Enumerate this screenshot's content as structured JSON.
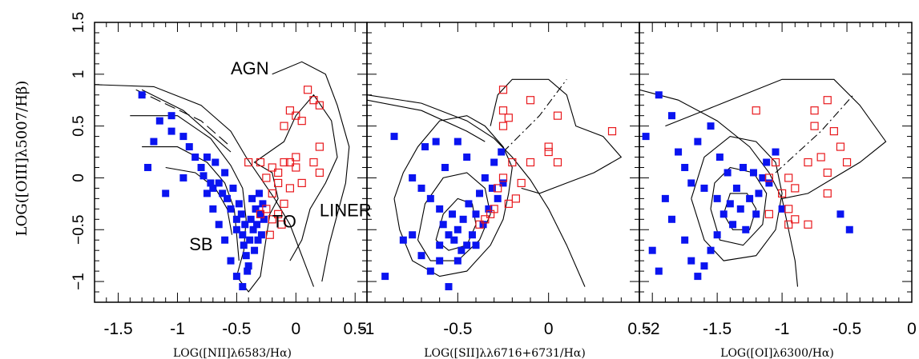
{
  "chart_data": {
    "type": "scatter",
    "ylabel": "LOG([OIII]λ5007/Hβ)",
    "ylim": [
      -1.2,
      1.5
    ],
    "y_ticks": [
      "1.5",
      "1",
      "0.5",
      "0",
      "−0.5",
      "−1"
    ],
    "y_tick_values": [
      1.5,
      1,
      0.5,
      0,
      -0.5,
      -1
    ],
    "colors": {
      "blue": "#0a14f0",
      "red": "#e8181c",
      "line": "#000000"
    },
    "panels": [
      {
        "xlabel": "LOG([NII]λ6583/Hα)",
        "xlim": [
          -1.7,
          0.6
        ],
        "x_ticks": [
          "-1.5",
          "-1",
          "-0.5",
          "0",
          "0.5"
        ],
        "x_tick_values": [
          -1.5,
          -1,
          -0.5,
          0,
          0.5
        ],
        "annotations": [
          {
            "text": "AGN",
            "x": -0.55,
            "y": 1.0
          },
          {
            "text": "SB",
            "x": -0.9,
            "y": -0.7
          },
          {
            "text": "TO",
            "x": -0.2,
            "y": -0.48
          },
          {
            "text": "LINER",
            "x": 0.2,
            "y": -0.37
          }
        ],
        "blue": [
          [
            -1.3,
            0.8
          ],
          [
            -1.15,
            0.55
          ],
          [
            -1.05,
            0.45
          ],
          [
            -0.95,
            0.4
          ],
          [
            -0.9,
            0.3
          ],
          [
            -0.85,
            0.2
          ],
          [
            -0.8,
            0.1
          ],
          [
            -0.78,
            0.02
          ],
          [
            -0.75,
            0.2
          ],
          [
            -0.72,
            -0.05
          ],
          [
            -0.7,
            -0.1
          ],
          [
            -0.68,
            0.15
          ],
          [
            -0.65,
            -0.05
          ],
          [
            -0.62,
            -0.15
          ],
          [
            -0.6,
            0.05
          ],
          [
            -0.58,
            -0.2
          ],
          [
            -0.55,
            -0.3
          ],
          [
            -0.53,
            -0.1
          ],
          [
            -0.5,
            -0.4
          ],
          [
            -0.5,
            -0.5
          ],
          [
            -0.48,
            -0.25
          ],
          [
            -0.46,
            -0.35
          ],
          [
            -0.45,
            -0.55
          ],
          [
            -0.44,
            -0.65
          ],
          [
            -0.43,
            -0.45
          ],
          [
            -0.42,
            -0.75
          ],
          [
            -0.41,
            -0.9
          ],
          [
            -0.4,
            -0.85
          ],
          [
            -0.39,
            -0.6
          ],
          [
            -0.38,
            -0.4
          ],
          [
            -0.37,
            -0.2
          ],
          [
            -0.36,
            -0.5
          ],
          [
            -0.35,
            -0.7
          ],
          [
            -0.34,
            -0.3
          ],
          [
            -0.33,
            -0.45
          ],
          [
            -0.32,
            -0.6
          ],
          [
            -0.31,
            -0.15
          ],
          [
            -0.3,
            -0.35
          ],
          [
            -0.29,
            -0.55
          ],
          [
            -0.28,
            -0.25
          ],
          [
            -0.27,
            -0.4
          ],
          [
            -0.45,
            -1.05
          ],
          [
            -0.5,
            -0.95
          ],
          [
            -0.55,
            -0.8
          ],
          [
            -0.6,
            -0.6
          ],
          [
            -0.65,
            -0.45
          ],
          [
            -0.7,
            -0.3
          ],
          [
            -0.75,
            -0.15
          ],
          [
            -1.2,
            0.35
          ],
          [
            -1.25,
            0.1
          ],
          [
            -1.1,
            -0.15
          ],
          [
            -1.05,
            0.6
          ],
          [
            -0.95,
            0.0
          ]
        ],
        "red": [
          [
            0.1,
            0.85
          ],
          [
            0.15,
            0.75
          ],
          [
            0.2,
            0.7
          ],
          [
            0.05,
            0.55
          ],
          [
            -0.05,
            0.65
          ],
          [
            0.0,
            0.6
          ],
          [
            -0.1,
            0.5
          ],
          [
            0.2,
            0.3
          ],
          [
            0.15,
            0.15
          ],
          [
            0.2,
            0.05
          ],
          [
            0.0,
            0.2
          ],
          [
            0.0,
            0.1
          ],
          [
            -0.05,
            0.15
          ],
          [
            -0.1,
            0.15
          ],
          [
            -0.15,
            0.05
          ],
          [
            -0.2,
            0.1
          ],
          [
            -0.3,
            0.15
          ],
          [
            -0.4,
            0.15
          ],
          [
            -0.25,
            0.0
          ],
          [
            -0.15,
            -0.05
          ],
          [
            -0.2,
            -0.15
          ],
          [
            -0.25,
            -0.3
          ],
          [
            -0.3,
            -0.35
          ],
          [
            -0.2,
            -0.4
          ],
          [
            -0.15,
            -0.35
          ],
          [
            -0.12,
            -0.45
          ],
          [
            -0.22,
            -0.55
          ],
          [
            -0.1,
            -0.25
          ],
          [
            -0.05,
            -0.1
          ],
          [
            0.05,
            -0.05
          ]
        ]
      },
      {
        "xlabel": "LOG([SII]λλ6716+6731/Hα)",
        "xlim": [
          -1.0,
          0.5
        ],
        "x_ticks": [
          "-1",
          "-0.5",
          "0",
          "0.5"
        ],
        "x_tick_values": [
          -1,
          -0.5,
          0,
          0.5
        ],
        "annotations": [],
        "blue": [
          [
            -0.85,
            0.4
          ],
          [
            -0.75,
            0.0
          ],
          [
            -0.7,
            -0.1
          ],
          [
            -0.68,
            0.3
          ],
          [
            -0.65,
            -0.2
          ],
          [
            -0.62,
            0.35
          ],
          [
            -0.6,
            -0.3
          ],
          [
            -0.58,
            -0.45
          ],
          [
            -0.57,
            0.1
          ],
          [
            -0.55,
            -0.55
          ],
          [
            -0.53,
            -0.35
          ],
          [
            -0.52,
            -0.6
          ],
          [
            -0.5,
            -0.5
          ],
          [
            -0.48,
            -0.7
          ],
          [
            -0.47,
            -0.4
          ],
          [
            -0.45,
            -0.65
          ],
          [
            -0.44,
            -0.25
          ],
          [
            -0.42,
            -0.55
          ],
          [
            -0.4,
            -0.35
          ],
          [
            -0.38,
            -0.15
          ],
          [
            -0.36,
            -0.45
          ],
          [
            -0.35,
            0.0
          ],
          [
            -0.33,
            -0.3
          ],
          [
            -0.31,
            -0.1
          ],
          [
            -0.3,
            0.15
          ],
          [
            -0.28,
            -0.2
          ],
          [
            -0.26,
            0.25
          ],
          [
            -0.25,
            -0.05
          ],
          [
            -0.6,
            -0.8
          ],
          [
            -0.65,
            -0.9
          ],
          [
            -0.55,
            -1.05
          ],
          [
            -0.7,
            -0.75
          ],
          [
            -0.8,
            -0.6
          ],
          [
            -0.9,
            -0.95
          ],
          [
            -0.75,
            -0.55
          ],
          [
            -0.6,
            -0.65
          ],
          [
            -0.5,
            -0.8
          ],
          [
            -0.4,
            -0.65
          ],
          [
            -0.45,
            0.2
          ],
          [
            -0.5,
            0.35
          ]
        ],
        "red": [
          [
            -0.25,
            0.85
          ],
          [
            -0.25,
            0.65
          ],
          [
            -0.22,
            0.58
          ],
          [
            -0.25,
            0.5
          ],
          [
            -0.1,
            0.75
          ],
          [
            0.05,
            0.6
          ],
          [
            0.35,
            0.45
          ],
          [
            0.0,
            0.25
          ],
          [
            0.0,
            0.3
          ],
          [
            0.05,
            0.15
          ],
          [
            -0.1,
            0.15
          ],
          [
            -0.15,
            -0.05
          ],
          [
            -0.2,
            0.15
          ],
          [
            -0.25,
            0.0
          ],
          [
            -0.28,
            -0.1
          ],
          [
            -0.3,
            -0.3
          ],
          [
            -0.32,
            -0.35
          ],
          [
            -0.35,
            -0.4
          ],
          [
            -0.38,
            -0.45
          ],
          [
            -0.22,
            -0.25
          ],
          [
            -0.18,
            -0.2
          ]
        ]
      },
      {
        "xlabel": "LOG([OI]λ6300/Hα)",
        "xlim": [
          -2.1,
          0.0
        ],
        "x_ticks": [
          "-2",
          "-1.5",
          "-1",
          "-0.5",
          "0"
        ],
        "x_tick_values": [
          -2,
          -1.5,
          -1,
          -0.5,
          0
        ],
        "annotations": [],
        "blue": [
          [
            -1.95,
            0.8
          ],
          [
            -2.05,
            0.4
          ],
          [
            -1.85,
            0.6
          ],
          [
            -1.8,
            0.25
          ],
          [
            -1.75,
            0.1
          ],
          [
            -1.7,
            -0.05
          ],
          [
            -1.65,
            0.35
          ],
          [
            -1.6,
            -0.1
          ],
          [
            -1.55,
            0.5
          ],
          [
            -1.5,
            -0.2
          ],
          [
            -1.48,
            0.2
          ],
          [
            -1.45,
            -0.35
          ],
          [
            -1.42,
            0.05
          ],
          [
            -1.4,
            -0.25
          ],
          [
            -1.38,
            -0.45
          ],
          [
            -1.35,
            -0.1
          ],
          [
            -1.32,
            -0.3
          ],
          [
            -1.3,
            0.1
          ],
          [
            -1.28,
            -0.5
          ],
          [
            -1.25,
            -0.2
          ],
          [
            -1.22,
            0.05
          ],
          [
            -1.2,
            -0.35
          ],
          [
            -1.18,
            -0.15
          ],
          [
            -1.15,
            0.0
          ],
          [
            -1.12,
            0.15
          ],
          [
            -1.1,
            -0.05
          ],
          [
            -1.05,
            0.25
          ],
          [
            -1.0,
            -0.3
          ],
          [
            -1.5,
            -0.55
          ],
          [
            -1.55,
            -0.7
          ],
          [
            -1.6,
            -0.85
          ],
          [
            -1.65,
            -0.95
          ],
          [
            -1.7,
            -0.8
          ],
          [
            -1.75,
            -0.6
          ],
          [
            -1.85,
            -0.4
          ],
          [
            -1.95,
            -0.9
          ],
          [
            -2.0,
            -0.7
          ],
          [
            -1.9,
            -0.2
          ],
          [
            -0.55,
            -0.35
          ],
          [
            -0.48,
            -0.5
          ]
        ],
        "red": [
          [
            -0.65,
            0.75
          ],
          [
            -0.75,
            0.65
          ],
          [
            -1.2,
            0.65
          ],
          [
            -0.75,
            0.5
          ],
          [
            -0.6,
            0.45
          ],
          [
            -0.55,
            0.3
          ],
          [
            -0.7,
            0.2
          ],
          [
            -0.8,
            0.15
          ],
          [
            -0.5,
            0.15
          ],
          [
            -0.65,
            0.05
          ],
          [
            -0.95,
            0.0
          ],
          [
            -1.05,
            0.15
          ],
          [
            -1.1,
            0.0
          ],
          [
            -0.9,
            -0.1
          ],
          [
            -1.0,
            -0.15
          ],
          [
            -0.65,
            -0.15
          ],
          [
            -0.95,
            -0.3
          ],
          [
            -0.9,
            -0.4
          ],
          [
            -0.8,
            -0.45
          ],
          [
            -0.95,
            -0.45
          ],
          [
            -1.1,
            -0.35
          ]
        ]
      }
    ]
  }
}
